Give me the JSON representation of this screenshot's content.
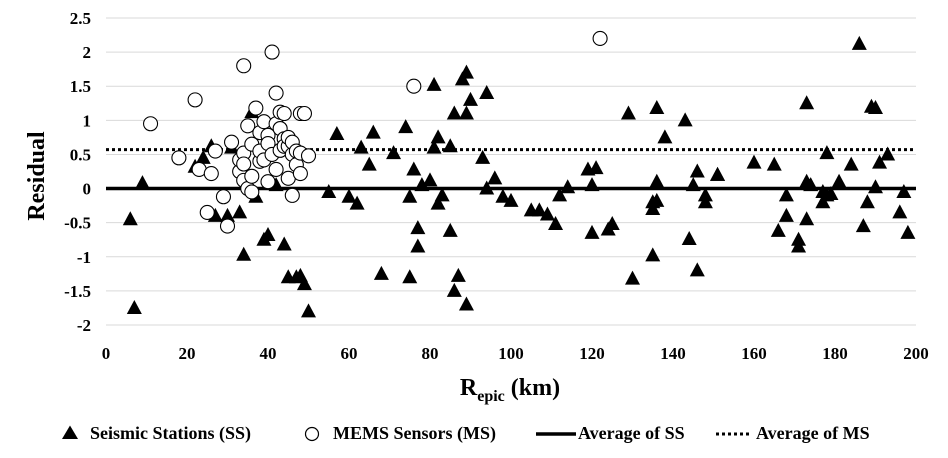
{
  "chart_data": {
    "type": "scatter",
    "xlabel_main": "R",
    "xlabel_sub": "epic",
    "xlabel_unit": " (km)",
    "ylabel": "Residual",
    "xlim": [
      0,
      200
    ],
    "ylim": [
      -2,
      2.5
    ],
    "xticks": [
      0,
      20,
      40,
      60,
      80,
      100,
      120,
      140,
      160,
      180,
      200
    ],
    "yticks": [
      -2,
      -1.5,
      -1,
      -0.5,
      0,
      0.5,
      1,
      1.5,
      2,
      2.5
    ],
    "ytick_labels": [
      "-2",
      "-1.5",
      "-1",
      "-0.5",
      "0",
      "0.5",
      "1",
      "1.5",
      "2",
      "2.5"
    ],
    "grid": "horizontal",
    "legend_placement": "bottom",
    "series": [
      {
        "name": "Seismic Stations (SS)",
        "marker": "filled-triangle",
        "color": "#000000",
        "points": [
          [
            6,
            -0.45
          ],
          [
            7,
            -1.75
          ],
          [
            9,
            0.08
          ],
          [
            22,
            0.32
          ],
          [
            24,
            0.45
          ],
          [
            26,
            0.62
          ],
          [
            27,
            -0.4
          ],
          [
            30,
            -0.4
          ],
          [
            31,
            0.6
          ],
          [
            33,
            -0.35
          ],
          [
            34,
            -0.97
          ],
          [
            36,
            1.12
          ],
          [
            37,
            -0.12
          ],
          [
            39,
            -0.75
          ],
          [
            40,
            -0.68
          ],
          [
            42,
            0.05
          ],
          [
            44,
            -0.82
          ],
          [
            45,
            -1.3
          ],
          [
            47,
            -1.3
          ],
          [
            48,
            -1.28
          ],
          [
            49,
            -1.4
          ],
          [
            50,
            -1.8
          ],
          [
            55,
            -0.05
          ],
          [
            57,
            0.8
          ],
          [
            60,
            -0.12
          ],
          [
            62,
            -0.22
          ],
          [
            63,
            0.6
          ],
          [
            65,
            0.35
          ],
          [
            66,
            0.82
          ],
          [
            68,
            -1.25
          ],
          [
            71,
            0.52
          ],
          [
            74,
            0.9
          ],
          [
            75,
            -0.12
          ],
          [
            75,
            -1.3
          ],
          [
            76,
            0.28
          ],
          [
            77,
            -0.58
          ],
          [
            77,
            -0.85
          ],
          [
            78,
            0.05
          ],
          [
            80,
            0.12
          ],
          [
            81,
            1.52
          ],
          [
            81,
            0.6
          ],
          [
            82,
            0.75
          ],
          [
            82,
            -0.22
          ],
          [
            83,
            -0.1
          ],
          [
            85,
            -0.62
          ],
          [
            85,
            0.62
          ],
          [
            86,
            -1.5
          ],
          [
            86,
            1.1
          ],
          [
            87,
            -1.28
          ],
          [
            88,
            1.6
          ],
          [
            89,
            1.7
          ],
          [
            89,
            1.1
          ],
          [
            89,
            -1.7
          ],
          [
            90,
            1.3
          ],
          [
            93,
            0.45
          ],
          [
            94,
            1.4
          ],
          [
            94,
            0.0
          ],
          [
            96,
            0.15
          ],
          [
            98,
            -0.12
          ],
          [
            100,
            -0.18
          ],
          [
            105,
            -0.32
          ],
          [
            107,
            -0.32
          ],
          [
            109,
            -0.38
          ],
          [
            111,
            -0.52
          ],
          [
            112,
            -0.1
          ],
          [
            114,
            0.02
          ],
          [
            119,
            0.28
          ],
          [
            120,
            0.05
          ],
          [
            120,
            -0.65
          ],
          [
            121,
            0.3
          ],
          [
            124,
            -0.6
          ],
          [
            125,
            -0.52
          ],
          [
            129,
            1.1
          ],
          [
            130,
            -1.32
          ],
          [
            135,
            -0.98
          ],
          [
            135,
            -0.2
          ],
          [
            135,
            -0.3
          ],
          [
            136,
            -0.18
          ],
          [
            136,
            1.18
          ],
          [
            136,
            0.1
          ],
          [
            138,
            0.75
          ],
          [
            143,
            1.0
          ],
          [
            144,
            -0.74
          ],
          [
            145,
            0.05
          ],
          [
            146,
            0.25
          ],
          [
            146,
            -1.2
          ],
          [
            148,
            -0.1
          ],
          [
            148,
            -0.2
          ],
          [
            151,
            0.2
          ],
          [
            151,
            0.2
          ],
          [
            160,
            0.38
          ],
          [
            165,
            0.35
          ],
          [
            166,
            -0.62
          ],
          [
            168,
            -0.4
          ],
          [
            168,
            -0.1
          ],
          [
            171,
            -0.75
          ],
          [
            171,
            -0.85
          ],
          [
            173,
            1.25
          ],
          [
            173,
            -0.45
          ],
          [
            173,
            0.1
          ],
          [
            174,
            0.05
          ],
          [
            177,
            -0.05
          ],
          [
            177,
            -0.2
          ],
          [
            178,
            -0.1
          ],
          [
            178,
            0.52
          ],
          [
            179,
            -0.08
          ],
          [
            181,
            0.1
          ],
          [
            184,
            0.35
          ],
          [
            186,
            2.12
          ],
          [
            187,
            -0.55
          ],
          [
            188,
            -0.2
          ],
          [
            189,
            1.2
          ],
          [
            190,
            1.18
          ],
          [
            190,
            0.02
          ],
          [
            191,
            0.38
          ],
          [
            193,
            0.5
          ],
          [
            196,
            -0.35
          ],
          [
            197,
            -0.05
          ],
          [
            198,
            -0.65
          ]
        ]
      },
      {
        "name": "MEMS Sensors (MS)",
        "marker": "open-circle",
        "color": "#000000",
        "points": [
          [
            11,
            0.95
          ],
          [
            18,
            0.45
          ],
          [
            22,
            1.3
          ],
          [
            23,
            0.28
          ],
          [
            25,
            -0.35
          ],
          [
            26,
            0.22
          ],
          [
            27,
            0.55
          ],
          [
            29,
            -0.12
          ],
          [
            30,
            -0.55
          ],
          [
            31,
            0.68
          ],
          [
            33,
            0.25
          ],
          [
            33,
            0.42
          ],
          [
            34,
            0.12
          ],
          [
            34,
            0.52
          ],
          [
            34,
            1.8
          ],
          [
            34,
            0.36
          ],
          [
            35,
            0.0
          ],
          [
            35,
            0.92
          ],
          [
            36,
            0.18
          ],
          [
            36,
            0.65
          ],
          [
            36,
            -0.05
          ],
          [
            37,
            1.18
          ],
          [
            38,
            0.4
          ],
          [
            38,
            0.82
          ],
          [
            38,
            0.55
          ],
          [
            39,
            0.98
          ],
          [
            39,
            0.42
          ],
          [
            40,
            0.1
          ],
          [
            40,
            0.78
          ],
          [
            40,
            0.66
          ],
          [
            41,
            2.0
          ],
          [
            41,
            0.5
          ],
          [
            42,
            0.95
          ],
          [
            42,
            0.28
          ],
          [
            42,
            1.4
          ],
          [
            43,
            1.12
          ],
          [
            43,
            0.88
          ],
          [
            43,
            0.56
          ],
          [
            44,
            1.1
          ],
          [
            44,
            0.73
          ],
          [
            44,
            0.62
          ],
          [
            45,
            0.62
          ],
          [
            45,
            0.75
          ],
          [
            45,
            0.15
          ],
          [
            46,
            0.5
          ],
          [
            46,
            0.68
          ],
          [
            46,
            -0.1
          ],
          [
            47,
            0.35
          ],
          [
            47,
            0.55
          ],
          [
            48,
            1.1
          ],
          [
            48,
            0.52
          ],
          [
            48,
            0.22
          ],
          [
            49,
            1.1
          ],
          [
            50,
            0.48
          ],
          [
            76,
            1.5
          ],
          [
            122,
            2.2
          ]
        ]
      },
      {
        "name": "Average of SS",
        "line": "solid",
        "color": "#000000",
        "value": 0.0
      },
      {
        "name": "Average of MS",
        "line": "dotted",
        "color": "#000000",
        "value": 0.57
      }
    ]
  }
}
